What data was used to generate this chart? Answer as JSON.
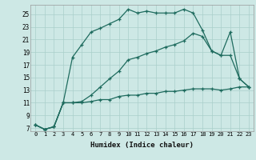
{
  "xlabel": "Humidex (Indice chaleur)",
  "bg_color": "#cde8e5",
  "line_color": "#1e6b5e",
  "grid_color": "#aacfca",
  "xlim": [
    -0.5,
    23.5
  ],
  "ylim": [
    6.5,
    26.5
  ],
  "yticks": [
    7,
    9,
    11,
    13,
    15,
    17,
    19,
    21,
    23,
    25
  ],
  "xticks": [
    0,
    1,
    2,
    3,
    4,
    5,
    6,
    7,
    8,
    9,
    10,
    11,
    12,
    13,
    14,
    15,
    16,
    17,
    18,
    19,
    20,
    21,
    22,
    23
  ],
  "series": [
    {
      "x": [
        0,
        1,
        2,
        3,
        4,
        5,
        6,
        7,
        8,
        9,
        10,
        11,
        12,
        13,
        14,
        15,
        16,
        17,
        18,
        19,
        20,
        21,
        22,
        23
      ],
      "y": [
        7.5,
        6.8,
        7.2,
        11.0,
        18.2,
        20.2,
        22.2,
        22.8,
        23.5,
        24.2,
        25.8,
        25.2,
        25.5,
        25.2,
        25.2,
        25.2,
        25.8,
        25.2,
        22.5,
        19.2,
        18.5,
        22.2,
        14.8,
        13.5
      ]
    },
    {
      "x": [
        0,
        1,
        2,
        3,
        4,
        5,
        6,
        7,
        8,
        9,
        10,
        11,
        12,
        13,
        14,
        15,
        16,
        17,
        18,
        19,
        20,
        21,
        22,
        23
      ],
      "y": [
        7.5,
        6.8,
        7.2,
        11.0,
        11.0,
        11.0,
        11.2,
        11.5,
        11.5,
        12.0,
        12.2,
        12.2,
        12.5,
        12.5,
        12.8,
        12.8,
        13.0,
        13.2,
        13.2,
        13.2,
        13.0,
        13.2,
        13.5,
        13.5
      ]
    },
    {
      "x": [
        0,
        1,
        2,
        3,
        4,
        5,
        6,
        7,
        8,
        9,
        10,
        11,
        12,
        13,
        14,
        15,
        16,
        17,
        18,
        19,
        20,
        21,
        22,
        23
      ],
      "y": [
        7.5,
        6.8,
        7.2,
        11.0,
        11.0,
        11.2,
        12.2,
        13.5,
        14.8,
        16.0,
        17.8,
        18.2,
        18.8,
        19.2,
        19.8,
        20.2,
        20.8,
        22.0,
        21.5,
        19.2,
        18.5,
        18.5,
        14.8,
        13.5
      ]
    }
  ]
}
